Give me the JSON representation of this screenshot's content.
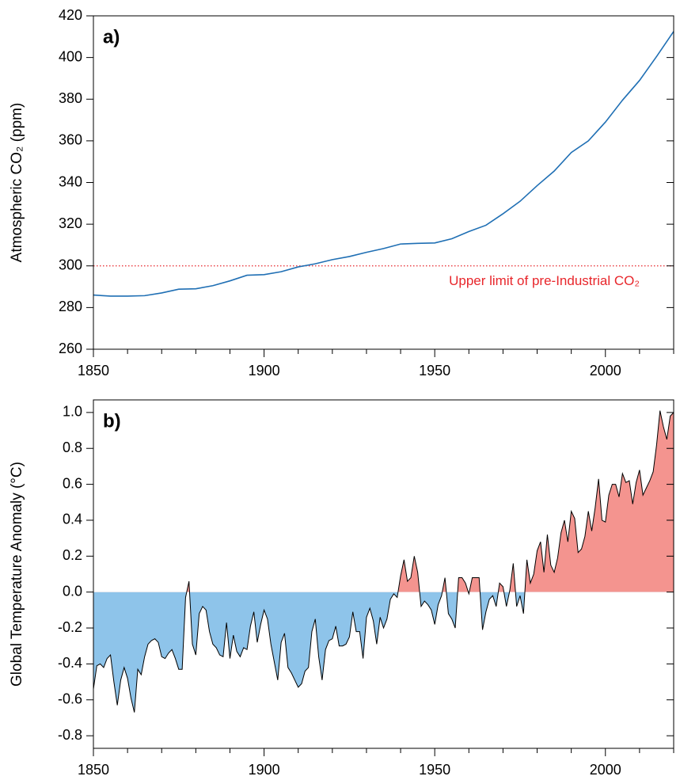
{
  "chart_data": [
    {
      "type": "line",
      "panel_label": "a)",
      "ylabel": "Atmospheric CO₂ (ppm)",
      "x": [
        1850,
        1855,
        1860,
        1865,
        1870,
        1875,
        1880,
        1885,
        1890,
        1895,
        1900,
        1905,
        1910,
        1915,
        1920,
        1925,
        1930,
        1935,
        1940,
        1945,
        1950,
        1955,
        1960,
        1965,
        1970,
        1975,
        1980,
        1985,
        1990,
        1995,
        2000,
        2005,
        2010,
        2015,
        2020
      ],
      "values": [
        286,
        285.5,
        285.5,
        285.7,
        287,
        288.8,
        289,
        290.5,
        292.8,
        295.5,
        295.8,
        297.2,
        299.5,
        301,
        303,
        304.5,
        306.5,
        308.3,
        310.5,
        310.8,
        311,
        313,
        316.5,
        319.5,
        325,
        331,
        338.5,
        345.5,
        354.4,
        360,
        369,
        379.5,
        389,
        400.5,
        412.5
      ],
      "color": "#1f6fb4",
      "xlim": [
        1850,
        2020
      ],
      "xticks": [
        1850,
        1900,
        1950,
        2000
      ],
      "xminorticks": [
        1860,
        1870,
        1880,
        1890,
        1910,
        1920,
        1930,
        1940,
        1960,
        1970,
        1980,
        1990,
        2010,
        2020
      ],
      "ylim": [
        260,
        420
      ],
      "yticks": [
        260,
        280,
        300,
        320,
        340,
        360,
        380,
        400,
        420
      ],
      "hline": {
        "value": 300,
        "color": "#e8262b",
        "label": "Upper limit of pre-Industrial CO₂"
      }
    },
    {
      "type": "area",
      "panel_label": "b)",
      "ylabel": "Global Temperature Anomaly (°C)",
      "x": [
        1850,
        1851,
        1852,
        1853,
        1854,
        1855,
        1856,
        1857,
        1858,
        1859,
        1860,
        1861,
        1862,
        1863,
        1864,
        1865,
        1866,
        1867,
        1868,
        1869,
        1870,
        1871,
        1872,
        1873,
        1874,
        1875,
        1876,
        1877,
        1878,
        1879,
        1880,
        1881,
        1882,
        1883,
        1884,
        1885,
        1886,
        1887,
        1888,
        1889,
        1890,
        1891,
        1892,
        1893,
        1894,
        1895,
        1896,
        1897,
        1898,
        1899,
        1900,
        1901,
        1902,
        1903,
        1904,
        1905,
        1906,
        1907,
        1908,
        1909,
        1910,
        1911,
        1912,
        1913,
        1914,
        1915,
        1916,
        1917,
        1918,
        1919,
        1920,
        1921,
        1922,
        1923,
        1924,
        1925,
        1926,
        1927,
        1928,
        1929,
        1930,
        1931,
        1932,
        1933,
        1934,
        1935,
        1936,
        1937,
        1938,
        1939,
        1940,
        1941,
        1942,
        1943,
        1944,
        1945,
        1946,
        1947,
        1948,
        1949,
        1950,
        1951,
        1952,
        1953,
        1954,
        1955,
        1956,
        1957,
        1958,
        1959,
        1960,
        1961,
        1962,
        1963,
        1964,
        1965,
        1966,
        1967,
        1968,
        1969,
        1970,
        1971,
        1972,
        1973,
        1974,
        1975,
        1976,
        1977,
        1978,
        1979,
        1980,
        1981,
        1982,
        1983,
        1984,
        1985,
        1986,
        1987,
        1988,
        1989,
        1990,
        1991,
        1992,
        1993,
        1994,
        1995,
        1996,
        1997,
        1998,
        1999,
        2000,
        2001,
        2002,
        2003,
        2004,
        2005,
        2006,
        2007,
        2008,
        2009,
        2010,
        2011,
        2012,
        2013,
        2014,
        2015,
        2016,
        2017,
        2018,
        2019,
        2020
      ],
      "values": [
        -0.54,
        -0.41,
        -0.4,
        -0.42,
        -0.37,
        -0.35,
        -0.5,
        -0.63,
        -0.49,
        -0.42,
        -0.48,
        -0.59,
        -0.67,
        -0.43,
        -0.46,
        -0.36,
        -0.29,
        -0.27,
        -0.26,
        -0.28,
        -0.36,
        -0.37,
        -0.34,
        -0.32,
        -0.37,
        -0.43,
        -0.43,
        -0.03,
        0.06,
        -0.29,
        -0.35,
        -0.12,
        -0.08,
        -0.1,
        -0.22,
        -0.29,
        -0.31,
        -0.35,
        -0.36,
        -0.17,
        -0.37,
        -0.24,
        -0.33,
        -0.36,
        -0.31,
        -0.32,
        -0.19,
        -0.11,
        -0.28,
        -0.18,
        -0.1,
        -0.15,
        -0.29,
        -0.39,
        -0.49,
        -0.28,
        -0.23,
        -0.42,
        -0.45,
        -0.49,
        -0.53,
        -0.51,
        -0.44,
        -0.42,
        -0.22,
        -0.15,
        -0.36,
        -0.49,
        -0.32,
        -0.27,
        -0.26,
        -0.19,
        -0.3,
        -0.3,
        -0.29,
        -0.25,
        -0.11,
        -0.22,
        -0.22,
        -0.37,
        -0.14,
        -0.09,
        -0.16,
        -0.29,
        -0.14,
        -0.2,
        -0.15,
        -0.04,
        -0.01,
        -0.03,
        0.09,
        0.18,
        0.06,
        0.08,
        0.2,
        0.11,
        -0.08,
        -0.05,
        -0.07,
        -0.1,
        -0.18,
        -0.07,
        -0.02,
        0.08,
        -0.12,
        -0.15,
        -0.2,
        0.08,
        0.08,
        0.05,
        -0.01,
        0.08,
        0.08,
        0.08,
        -0.21,
        -0.11,
        -0.04,
        -0.02,
        -0.08,
        0.05,
        0.03,
        -0.08,
        0.01,
        0.16,
        -0.08,
        -0.02,
        -0.12,
        0.18,
        0.05,
        0.1,
        0.23,
        0.28,
        0.11,
        0.32,
        0.15,
        0.11,
        0.19,
        0.33,
        0.4,
        0.28,
        0.45,
        0.41,
        0.22,
        0.24,
        0.31,
        0.45,
        0.34,
        0.47,
        0.63,
        0.4,
        0.39,
        0.54,
        0.6,
        0.6,
        0.53,
        0.66,
        0.61,
        0.62,
        0.49,
        0.61,
        0.68,
        0.54,
        0.58,
        0.62,
        0.67,
        0.82,
        1.01,
        0.92,
        0.85,
        0.98,
        1.0
      ],
      "color": "#000000",
      "positive_color": "#f4948f",
      "negative_color": "#8ec4ea",
      "xlim": [
        1850,
        2020
      ],
      "xticks": [
        1850,
        1900,
        1950,
        2000
      ],
      "xminorticks": [
        1860,
        1870,
        1880,
        1890,
        1910,
        1920,
        1930,
        1940,
        1960,
        1970,
        1980,
        1990,
        2010,
        2020
      ],
      "ylim": [
        -0.87,
        1.07
      ],
      "yticks": [
        -0.8,
        -0.6,
        -0.4,
        -0.2,
        {
          "value": 0,
          "label": "0.0"
        },
        0.2,
        0.4,
        0.6,
        0.8,
        {
          "value": 1,
          "label": "1.0"
        }
      ]
    }
  ]
}
